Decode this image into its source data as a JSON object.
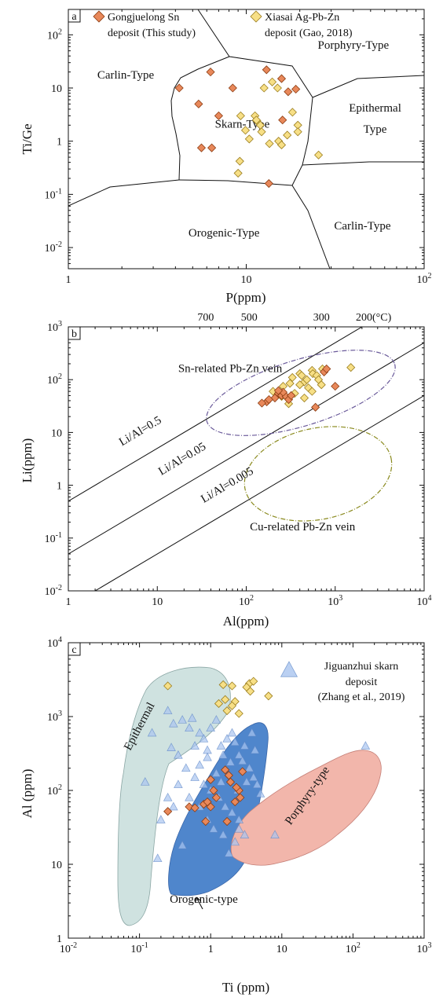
{
  "colors": {
    "gongjuelong": "#e8885a",
    "gongjuelong_edge": "#8a3a10",
    "xiasai": "#f7df86",
    "xiasai_edge": "#9a7d1e",
    "jiguanzhui": "#a9c4ef",
    "jiguanzhui_edge": "#5b84c4",
    "epithermal_field": "#cfe2e0",
    "orogenic_field": "#4f86cc",
    "porphyry_field": "#f2b6ab",
    "sn_ellipse": "#6a5a9a",
    "cu_ellipse": "#8a8a1e"
  },
  "chart_data": [
    {
      "panel": "a",
      "type": "scatter",
      "xlabel": "P(ppm)",
      "ylabel": "Ti/Ge",
      "xscale": "log",
      "yscale": "log",
      "xlim": [
        1,
        100
      ],
      "ylim": [
        0.004,
        300
      ],
      "xticks": [
        {
          "v": 1,
          "label": "1"
        },
        {
          "v": 10,
          "label": "10"
        },
        {
          "v": 100,
          "label": "10",
          "sup": "2"
        }
      ],
      "yticks": [
        {
          "v": 0.01,
          "label": "10",
          "sup": "-2"
        },
        {
          "v": 0.1,
          "label": "10",
          "sup": "-1"
        },
        {
          "v": 1,
          "label": "1"
        },
        {
          "v": 10,
          "label": "10"
        },
        {
          "v": 100,
          "label": "10",
          "sup": "2"
        }
      ],
      "legend": [
        {
          "series": "gongjuelong",
          "line1": "Gongjuelong Sn",
          "line2": "deposit (This study)"
        },
        {
          "series": "xiasai",
          "line1": "Xiasai Ag-Pb-Zn",
          "line2": "deposit (Gao, 2018)"
        }
      ],
      "field_labels": [
        {
          "text": "Porphyry-Type",
          "x": 40,
          "y": 55
        },
        {
          "text": "Carlin-Type",
          "x": 2.1,
          "y": 15
        },
        {
          "text": "Skarn-Type",
          "x": 9.5,
          "y": 1.8
        },
        {
          "text": "Epithermal",
          "x": 53,
          "y": 3.6
        },
        {
          "text": "Type",
          "x": 53,
          "y": 1.45
        },
        {
          "text": "Orogenic-Type",
          "x": 7.5,
          "y": 0.016
        },
        {
          "text": "Carlin-Type",
          "x": 45,
          "y": 0.022
        }
      ],
      "series": [
        {
          "key": "gongjuelong",
          "marker": "diamond",
          "points": [
            [
              6.3,
              20
            ],
            [
              4.2,
              10
            ],
            [
              5.4,
              5
            ],
            [
              8.4,
              10
            ],
            [
              13,
              22
            ],
            [
              15.8,
              15
            ],
            [
              17.2,
              8.5
            ],
            [
              19,
              9.5
            ],
            [
              16,
              2.5
            ],
            [
              5.6,
              0.75
            ],
            [
              6.4,
              0.75
            ],
            [
              13.4,
              0.16
            ],
            [
              7,
              3
            ]
          ]
        },
        {
          "key": "xiasai",
          "marker": "diamond",
          "points": [
            [
              12.6,
              10
            ],
            [
              14,
              13
            ],
            [
              15,
              10
            ],
            [
              9.3,
              3
            ],
            [
              11.2,
              3
            ],
            [
              11.5,
              2.4
            ],
            [
              12,
              2
            ],
            [
              12.2,
              1.5
            ],
            [
              10.4,
              1.1
            ],
            [
              9.2,
              0.42
            ],
            [
              9,
              0.25
            ],
            [
              13.5,
              0.9
            ],
            [
              15.2,
              1
            ],
            [
              17,
              1.3
            ],
            [
              18.2,
              3.5
            ],
            [
              19.5,
              2
            ],
            [
              19.5,
              1.5
            ],
            [
              25.5,
              0.55
            ],
            [
              15.8,
              0.85
            ],
            [
              11.4,
              2.5
            ],
            [
              9.9,
              1.6
            ]
          ]
        }
      ]
    },
    {
      "panel": "b",
      "type": "scatter",
      "xlabel": "Al(ppm)",
      "ylabel": "Li(ppm)",
      "xscale": "log",
      "yscale": "log",
      "xlim": [
        1,
        10000
      ],
      "ylim": [
        0.01,
        1000
      ],
      "xticks": [
        {
          "v": 1,
          "label": "1"
        },
        {
          "v": 10,
          "label": "10"
        },
        {
          "v": 100,
          "label": "10",
          "sup": "2"
        },
        {
          "v": 1000,
          "label": "10",
          "sup": "3"
        },
        {
          "v": 10000,
          "label": "10",
          "sup": "4"
        }
      ],
      "yticks": [
        {
          "v": 0.01,
          "label": "10",
          "sup": "-2"
        },
        {
          "v": 0.1,
          "label": "10",
          "sup": "-1"
        },
        {
          "v": 1,
          "label": "1"
        },
        {
          "v": 10,
          "label": "10"
        },
        {
          "v": 100,
          "label": "10",
          "sup": "2"
        },
        {
          "v": 1000,
          "label": "10",
          "sup": "3"
        }
      ],
      "temperature_ticks": [
        {
          "x": 35,
          "label": "700"
        },
        {
          "x": 108,
          "label": "500"
        },
        {
          "x": 700,
          "label": "300"
        },
        {
          "x": 2700,
          "label": "200(°C)"
        }
      ],
      "ratio_lines": [
        {
          "ratio": 0.5,
          "label": "Li/Al=0.5"
        },
        {
          "ratio": 0.05,
          "label": "Li/Al=0.05"
        },
        {
          "ratio": 0.005,
          "label": "Li/Al=0.005"
        }
      ],
      "field_labels": [
        {
          "text": "Sn-related Pb-Zn vein",
          "x": 66,
          "y": 140
        },
        {
          "text": "Cu-related Pb-Zn vein",
          "x": 430,
          "y": 0.14
        }
      ],
      "series": [
        {
          "key": "gongjuelong",
          "marker": "diamond",
          "points": [
            [
              170,
              38
            ],
            [
              210,
              45
            ],
            [
              230,
              55
            ],
            [
              250,
              50
            ],
            [
              280,
              48
            ],
            [
              300,
              42
            ],
            [
              320,
              50
            ],
            [
              260,
              58
            ],
            [
              230,
              62
            ],
            [
              180,
              42
            ],
            [
              150,
              36
            ],
            [
              600,
              30
            ],
            [
              750,
              140
            ],
            [
              800,
              160
            ],
            [
              1000,
              75
            ]
          ]
        },
        {
          "key": "xiasai",
          "marker": "diamond",
          "points": [
            [
              200,
              60
            ],
            [
              260,
              75
            ],
            [
              310,
              85
            ],
            [
              330,
              110
            ],
            [
              400,
              130
            ],
            [
              420,
              120
            ],
            [
              450,
              90
            ],
            [
              480,
              100
            ],
            [
              500,
              70
            ],
            [
              550,
              60
            ],
            [
              550,
              150
            ],
            [
              560,
              130
            ],
            [
              620,
              120
            ],
            [
              650,
              100
            ],
            [
              700,
              80
            ],
            [
              720,
              160
            ],
            [
              350,
              55
            ],
            [
              250,
              48
            ],
            [
              1500,
              170
            ],
            [
              400,
              80
            ],
            [
              300,
              35
            ],
            [
              450,
              45
            ]
          ]
        }
      ]
    },
    {
      "panel": "c",
      "type": "scatter",
      "xlabel": "Ti (ppm)",
      "ylabel": "Al (ppm)",
      "xscale": "log",
      "yscale": "log",
      "xlim": [
        0.01,
        1000
      ],
      "ylim": [
        1,
        10000
      ],
      "xticks": [
        {
          "v": 0.01,
          "label": "10",
          "sup": "-2"
        },
        {
          "v": 0.1,
          "label": "10",
          "sup": "-1"
        },
        {
          "v": 1,
          "label": "1"
        },
        {
          "v": 10,
          "label": "10"
        },
        {
          "v": 100,
          "label": "10",
          "sup": "2"
        },
        {
          "v": 1000,
          "label": "10",
          "sup": "3"
        }
      ],
      "yticks": [
        {
          "v": 1,
          "label": "1"
        },
        {
          "v": 10,
          "label": "10"
        },
        {
          "v": 100,
          "label": "10",
          "sup": "2"
        },
        {
          "v": 1000,
          "label": "10",
          "sup": "3"
        },
        {
          "v": 10000,
          "label": "10",
          "sup": "4"
        }
      ],
      "legend": [
        {
          "series": "jiguanzhui",
          "line1": "Jiguanzhui skarn",
          "line2": "deposit",
          "line3": "(Zhang et al., 2019)"
        }
      ],
      "field_labels": [
        {
          "text": "Epithermal",
          "x": 0.11,
          "y": 700,
          "rotate": -62
        },
        {
          "text": "Porphyry-type",
          "x": 25,
          "y": 80,
          "rotate": -55
        },
        {
          "text": "Orogenic-type",
          "x": 0.8,
          "y": 3
        }
      ],
      "series": [
        {
          "key": "jiguanzhui",
          "marker": "triangle",
          "points": [
            [
              0.25,
              1200
            ],
            [
              0.3,
              800
            ],
            [
              0.4,
              900
            ],
            [
              0.5,
              700
            ],
            [
              0.55,
              950
            ],
            [
              0.6,
              400
            ],
            [
              0.7,
              600
            ],
            [
              0.8,
              500
            ],
            [
              0.9,
              350
            ],
            [
              1,
              700
            ],
            [
              1.2,
              900
            ],
            [
              1.4,
              400
            ],
            [
              1.5,
              300
            ],
            [
              1.7,
              500
            ],
            [
              2,
              600
            ],
            [
              2.2,
              450
            ],
            [
              2.5,
              300
            ],
            [
              2.8,
              250
            ],
            [
              3,
              400
            ],
            [
              3.5,
              200
            ],
            [
              4,
              150
            ],
            [
              4.5,
              120
            ],
            [
              5,
              90
            ],
            [
              0.35,
              300
            ],
            [
              0.45,
              200
            ],
            [
              0.6,
              150
            ],
            [
              0.8,
              120
            ],
            [
              1,
              100
            ],
            [
              1.3,
              80
            ],
            [
              1.6,
              60
            ],
            [
              2,
              50
            ],
            [
              2.5,
              40
            ],
            [
              0.7,
              60
            ],
            [
              0.9,
              40
            ],
            [
              1.1,
              30
            ],
            [
              1.5,
              25
            ],
            [
              2.2,
              20
            ],
            [
              0.3,
              60
            ],
            [
              0.25,
              80
            ],
            [
              0.2,
              40
            ],
            [
              0.35,
              120
            ],
            [
              0.5,
              80
            ],
            [
              3,
              25
            ],
            [
              0.18,
              12
            ],
            [
              0.4,
              18
            ],
            [
              2.5,
              30
            ],
            [
              1.8,
              14
            ],
            [
              0.28,
              380
            ],
            [
              0.7,
              220
            ],
            [
              0.9,
              280
            ],
            [
              1.2,
              170
            ],
            [
              3.8,
              600
            ],
            [
              4.2,
              350
            ],
            [
              0.12,
              130
            ],
            [
              0.15,
              600
            ],
            [
              1.4,
              130
            ],
            [
              1.9,
              240
            ],
            [
              2.4,
              100
            ],
            [
              3.2,
              130
            ],
            [
              150,
              400
            ],
            [
              8,
              25
            ]
          ]
        },
        {
          "key": "xiasai",
          "marker": "diamond",
          "points": [
            [
              0.25,
              2600
            ],
            [
              1.5,
              2700
            ],
            [
              2,
              2600
            ],
            [
              3.5,
              2800
            ],
            [
              4,
              3000
            ],
            [
              3.2,
              2500
            ],
            [
              3.6,
              2200
            ],
            [
              2.2,
              1600
            ],
            [
              1.7,
              1200
            ],
            [
              2.5,
              1100
            ],
            [
              1.3,
              1500
            ],
            [
              6.5,
              1900
            ],
            [
              1.6,
              1700
            ],
            [
              2,
              1400
            ]
          ]
        },
        {
          "key": "gongjuelong",
          "marker": "diamond",
          "points": [
            [
              1.6,
              190
            ],
            [
              1.8,
              160
            ],
            [
              1.9,
              130
            ],
            [
              2.5,
              100
            ],
            [
              2.2,
              70
            ],
            [
              2.6,
              80
            ],
            [
              1,
              140
            ],
            [
              1.1,
              100
            ],
            [
              1.2,
              80
            ],
            [
              0.5,
              60
            ],
            [
              0.6,
              58
            ],
            [
              0.8,
              65
            ],
            [
              1,
              60
            ],
            [
              0.9,
              70
            ],
            [
              1.7,
              38
            ],
            [
              0.85,
              38
            ],
            [
              0.25,
              52
            ],
            [
              2.8,
              180
            ],
            [
              2.3,
              110
            ]
          ]
        }
      ]
    }
  ],
  "panel_letters": {
    "a": "a",
    "b": "b",
    "c": "c"
  }
}
